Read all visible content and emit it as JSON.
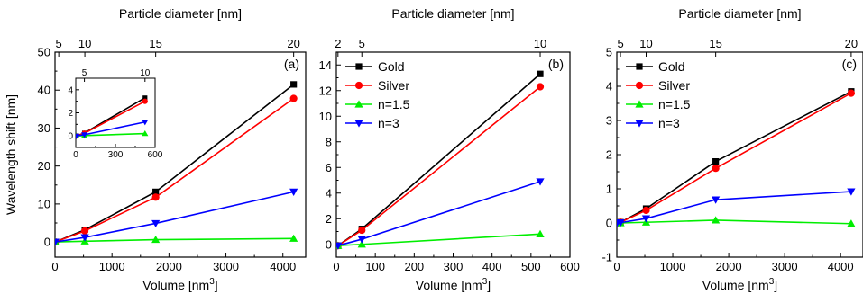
{
  "chart_data": [
    {
      "type": "line",
      "panel_label": "(a)",
      "xlabel": "Volume [nm³]",
      "ylabel": "Wavelength shift [nm]",
      "top_xlabel": "Particle diameter [nm]",
      "xlim": [
        0,
        4400
      ],
      "ylim": [
        -4,
        50
      ],
      "x_ticks": [
        0,
        1000,
        2000,
        3000,
        4000
      ],
      "y_ticks": [
        0,
        10,
        20,
        30,
        40,
        50
      ],
      "top_ticks": [
        {
          "label": "5",
          "value": 65.4
        },
        {
          "label": "10",
          "value": 523.6
        },
        {
          "label": "15",
          "value": 1767.1
        },
        {
          "label": "20",
          "value": 4188.8
        }
      ],
      "series": [
        {
          "color": "#000000",
          "marker": "square",
          "x": [
            4.2,
            523.6,
            1767.1,
            4188.8
          ],
          "y": [
            0,
            3.2,
            13.2,
            41.5
          ]
        },
        {
          "color": "#ff0000",
          "marker": "circle",
          "x": [
            4.2,
            523.6,
            1767.1,
            4188.8
          ],
          "y": [
            0,
            2.9,
            11.8,
            37.8
          ]
        },
        {
          "color": "#00ee00",
          "marker": "triangle-up",
          "x": [
            4.2,
            523.6,
            1767.1,
            4188.8
          ],
          "y": [
            0,
            0.2,
            0.6,
            0.9
          ]
        },
        {
          "color": "#0000ff",
          "marker": "triangle-down",
          "x": [
            4.2,
            523.6,
            1767.1,
            4188.8
          ],
          "y": [
            0,
            1.2,
            4.9,
            13.2
          ]
        }
      ],
      "inset": {
        "xlim": [
          0,
          600
        ],
        "ylim": [
          -1,
          5
        ],
        "x_ticks": [
          0,
          300,
          600
        ],
        "y_ticks": [
          0,
          2,
          4
        ],
        "top_ticks": [
          {
            "label": "5",
            "value": 65.4
          },
          {
            "label": "10",
            "value": 523.6
          }
        ],
        "series": [
          {
            "color": "#000000",
            "marker": "square",
            "x": [
              4.2,
              65.4,
              523.6
            ],
            "y": [
              0,
              0.25,
              3.3
            ]
          },
          {
            "color": "#ff0000",
            "marker": "circle",
            "x": [
              4.2,
              65.4,
              523.6
            ],
            "y": [
              0,
              0.23,
              3.0
            ]
          },
          {
            "color": "#00ee00",
            "marker": "triangle-up",
            "x": [
              4.2,
              65.4,
              523.6
            ],
            "y": [
              0,
              0.03,
              0.2
            ]
          },
          {
            "color": "#0000ff",
            "marker": "triangle-down",
            "x": [
              4.2,
              65.4,
              523.6
            ],
            "y": [
              0,
              0.1,
              1.2
            ]
          }
        ]
      }
    },
    {
      "type": "line",
      "panel_label": "(b)",
      "xlabel": "Volume [nm³]",
      "top_xlabel": "Particle diameter [nm]",
      "xlim": [
        0,
        600
      ],
      "ylim": [
        -1,
        15
      ],
      "x_ticks": [
        0,
        100,
        200,
        300,
        400,
        500,
        600
      ],
      "y_ticks": [
        0,
        2,
        4,
        6,
        8,
        10,
        12,
        14
      ],
      "top_ticks": [
        {
          "label": "2",
          "value": 4.2
        },
        {
          "label": "5",
          "value": 65.4
        },
        {
          "label": "10",
          "value": 523.6
        }
      ],
      "legend": [
        "Gold",
        "Silver",
        "n=1.5",
        "n=3"
      ],
      "series": [
        {
          "name": "Gold",
          "color": "#000000",
          "marker": "square",
          "x": [
            4.2,
            65.4,
            523.6
          ],
          "y": [
            -0.1,
            1.2,
            13.3
          ]
        },
        {
          "name": "Silver",
          "color": "#ff0000",
          "marker": "circle",
          "x": [
            4.2,
            65.4,
            523.6
          ],
          "y": [
            -0.1,
            1.1,
            12.3
          ]
        },
        {
          "name": "n=1.5",
          "color": "#00ee00",
          "marker": "triangle-up",
          "x": [
            4.2,
            65.4,
            523.6
          ],
          "y": [
            -0.1,
            0,
            0.8
          ]
        },
        {
          "name": "n=3",
          "color": "#0000ff",
          "marker": "triangle-down",
          "x": [
            4.2,
            65.4,
            523.6
          ],
          "y": [
            -0.1,
            0.4,
            4.9
          ]
        }
      ]
    },
    {
      "type": "line",
      "panel_label": "(c)",
      "xlabel": "Volume [nm³]",
      "top_xlabel": "Particle diameter [nm]",
      "xlim": [
        0,
        4400
      ],
      "ylim": [
        -1,
        5
      ],
      "x_ticks": [
        0,
        1000,
        2000,
        3000,
        4000
      ],
      "y_ticks": [
        -1,
        0,
        1,
        2,
        3,
        4,
        5
      ],
      "top_ticks": [
        {
          "label": "5",
          "value": 65.4
        },
        {
          "label": "10",
          "value": 523.6
        },
        {
          "label": "15",
          "value": 1767.1
        },
        {
          "label": "20",
          "value": 4188.8
        }
      ],
      "legend": [
        "Gold",
        "Silver",
        "n=1.5",
        "n=3"
      ],
      "series": [
        {
          "name": "Gold",
          "color": "#000000",
          "marker": "square",
          "x": [
            4.2,
            65.4,
            523.6,
            1767.1,
            4188.8
          ],
          "y": [
            0,
            0.02,
            0.42,
            1.8,
            3.85
          ]
        },
        {
          "name": "Silver",
          "color": "#ff0000",
          "marker": "circle",
          "x": [
            4.2,
            65.4,
            523.6,
            1767.1,
            4188.8
          ],
          "y": [
            0,
            0.02,
            0.37,
            1.6,
            3.8
          ]
        },
        {
          "name": "n=1.5",
          "color": "#00ee00",
          "marker": "triangle-up",
          "x": [
            4.2,
            65.4,
            523.6,
            1767.1,
            4188.8
          ],
          "y": [
            0,
            0,
            0.02,
            0.08,
            -0.02
          ]
        },
        {
          "name": "n=3",
          "color": "#0000ff",
          "marker": "triangle-down",
          "x": [
            4.2,
            65.4,
            523.6,
            1767.1,
            4188.8
          ],
          "y": [
            0,
            0.01,
            0.13,
            0.68,
            0.92
          ]
        }
      ]
    }
  ]
}
